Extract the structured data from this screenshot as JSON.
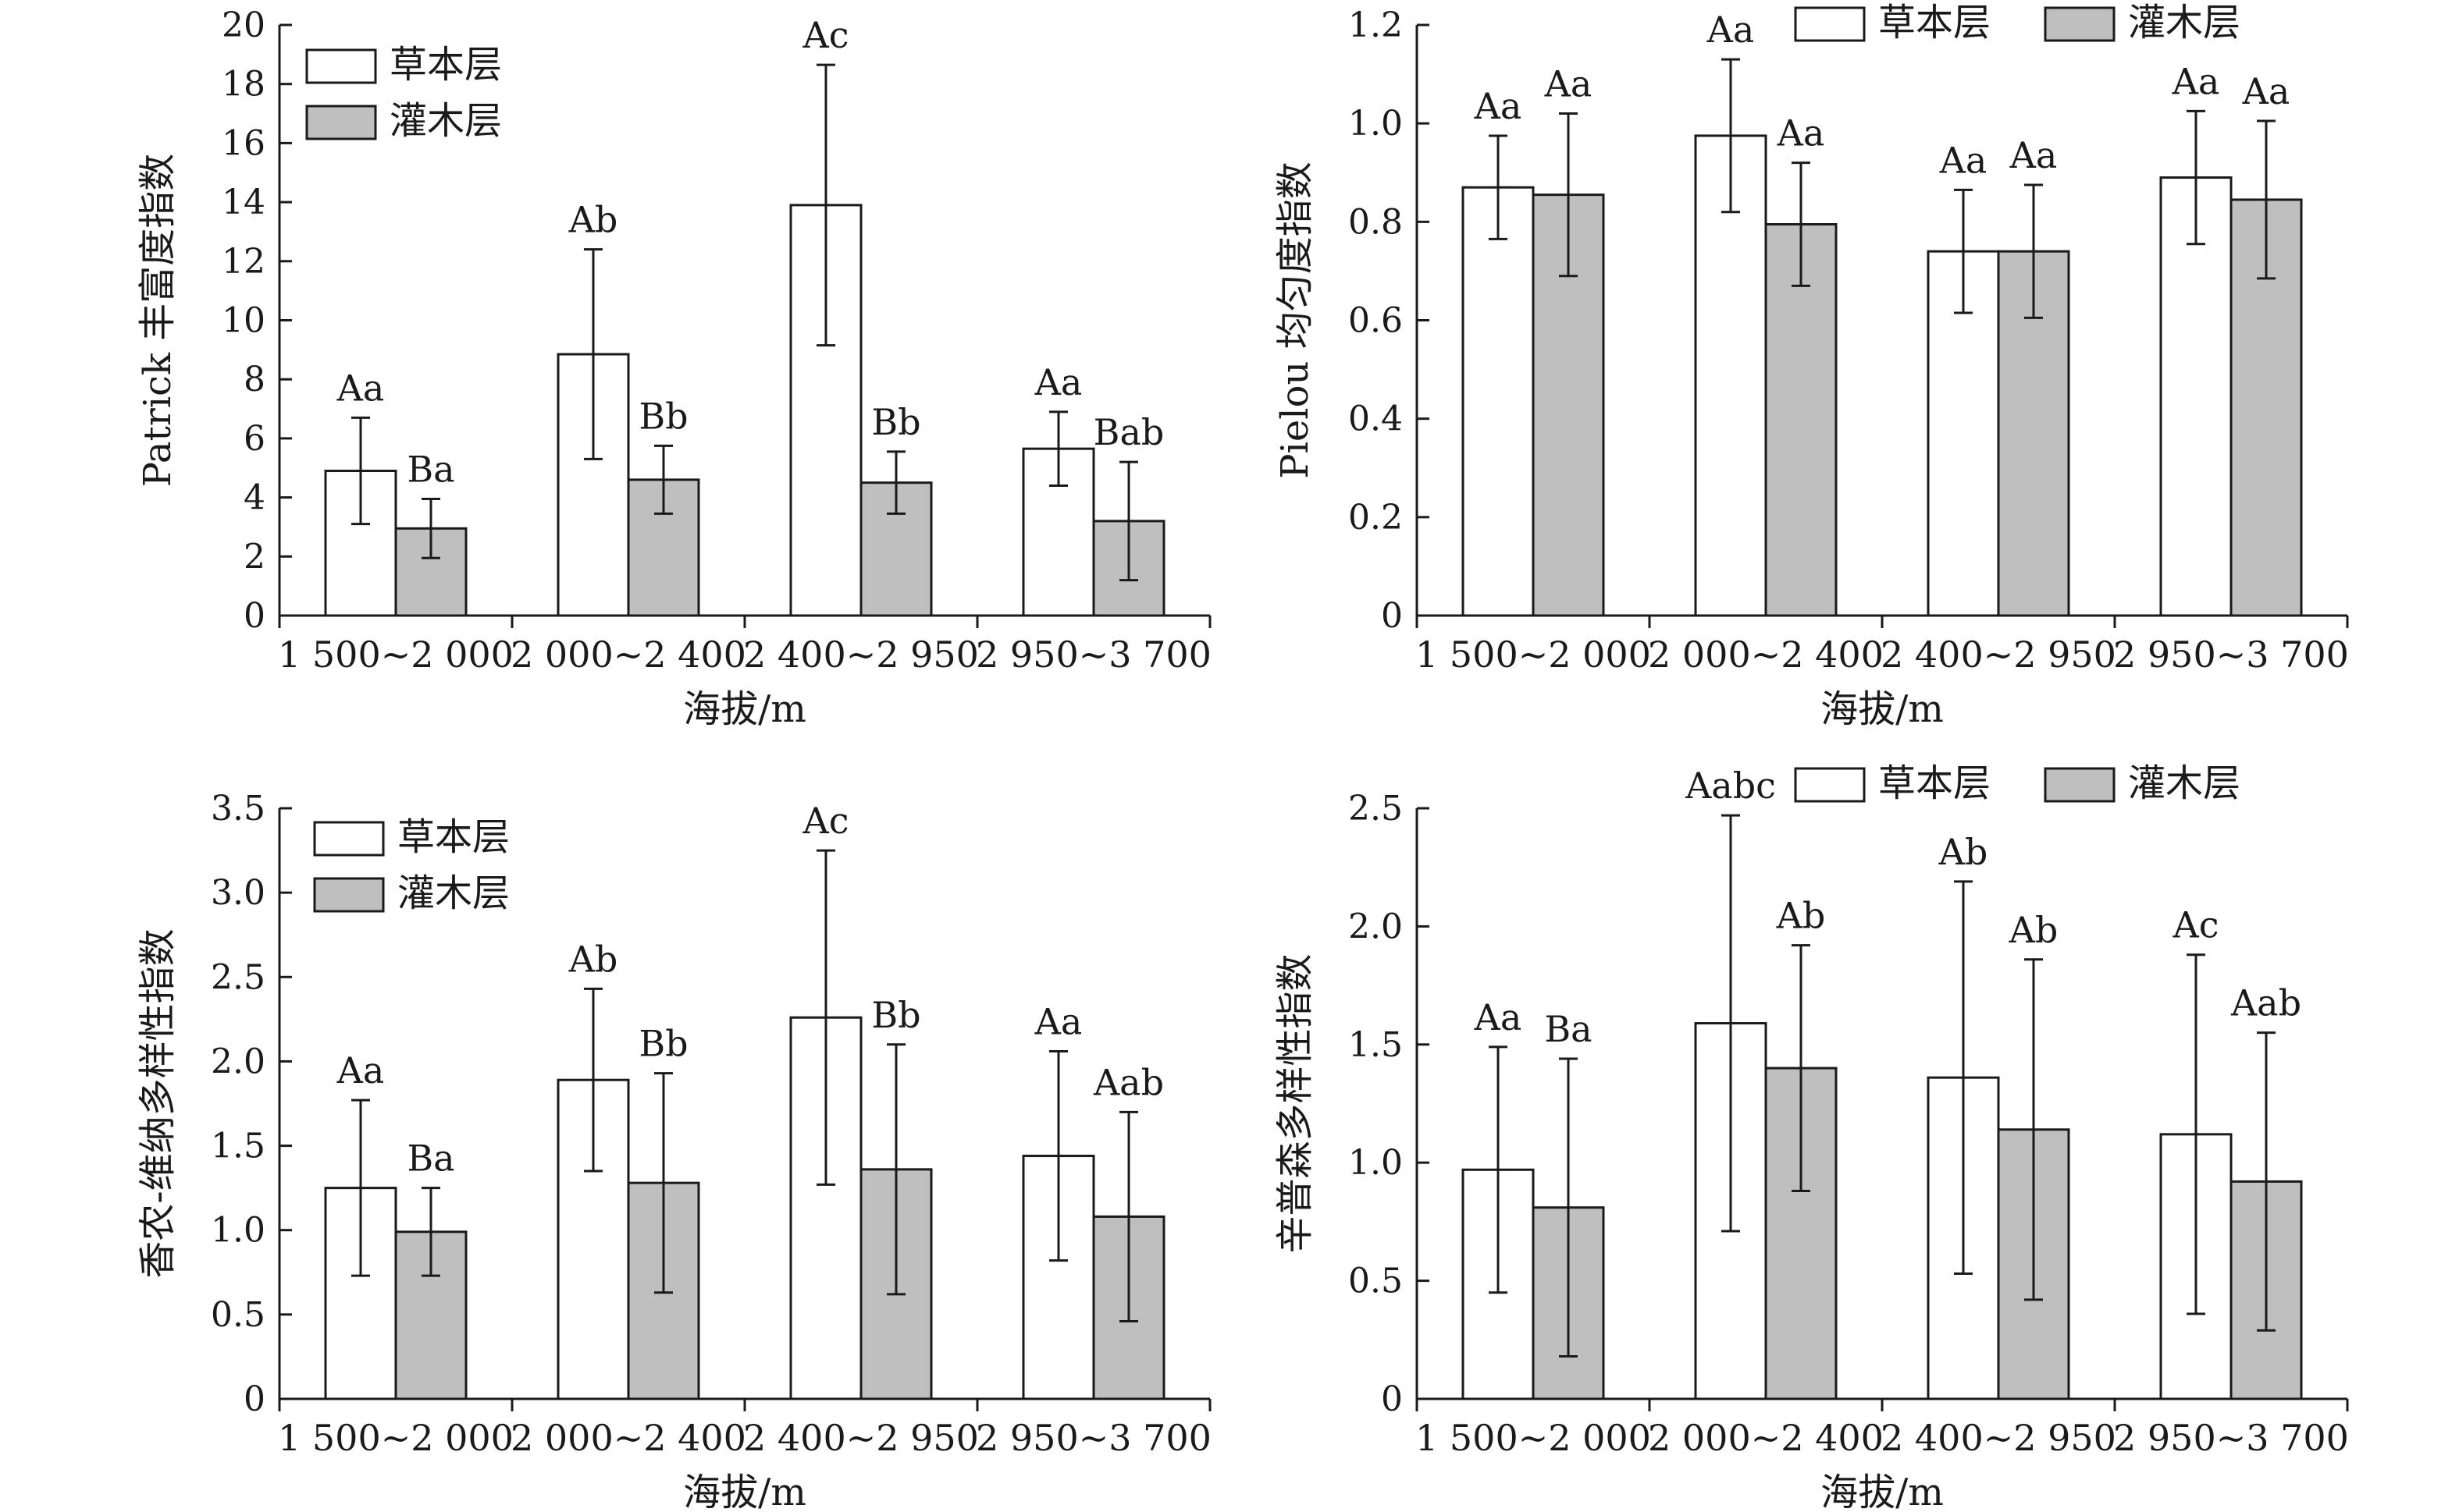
{
  "colors": {
    "herb": "#ffffff",
    "shrub": "#bfbfbf",
    "ink": "#1a1a1a"
  },
  "legend": {
    "herb": "草本层",
    "shrub": "灌木层"
  },
  "chart_data": [
    {
      "id": "patrick",
      "type": "bar",
      "ylabel": "Patrick 丰富度指数",
      "xlabel": "海拔/m",
      "ylim": [
        0,
        20
      ],
      "yticks": [
        0,
        2,
        4,
        6,
        8,
        10,
        12,
        14,
        16,
        18,
        20
      ],
      "categories": [
        "1 500~2 000",
        "2 000~2 400",
        "2 400~2 950",
        "2 950~3 700"
      ],
      "legend_position": "top-left",
      "series": [
        {
          "name": "草本层",
          "values": [
            4.9,
            8.85,
            13.9,
            5.65
          ],
          "error": [
            1.8,
            3.55,
            4.75,
            1.25
          ],
          "labels": [
            "Aa",
            "Ab",
            "Ac",
            "Aa"
          ]
        },
        {
          "name": "灌木层",
          "values": [
            2.95,
            4.6,
            4.5,
            3.2
          ],
          "error": [
            1.0,
            1.15,
            1.05,
            2.0
          ],
          "labels": [
            "Ba",
            "Bb",
            "Bb",
            "Bab"
          ]
        }
      ]
    },
    {
      "id": "pielou",
      "type": "bar",
      "ylabel": "Pielou 均匀度指数",
      "xlabel": "海拔/m",
      "ylim": [
        0,
        1.2
      ],
      "yticks": [
        "0",
        "0.2",
        "0.4",
        "0.6",
        "0.8",
        "1.0",
        "1.2"
      ],
      "categories": [
        "1 500~2 000",
        "2 000~2 400",
        "2 400~2 950",
        "2 950~3 700"
      ],
      "legend_position": "top",
      "series": [
        {
          "name": "草本层",
          "values": [
            0.87,
            0.975,
            0.74,
            0.89
          ],
          "error": [
            0.105,
            0.155,
            0.125,
            0.135
          ],
          "labels": [
            "Aa",
            "Aa",
            "Aa",
            "Aa"
          ]
        },
        {
          "name": "灌木层",
          "values": [
            0.855,
            0.795,
            0.74,
            0.845
          ],
          "error": [
            0.165,
            0.125,
            0.135,
            0.16
          ],
          "labels": [
            "Aa",
            "Aa",
            "Aa",
            "Aa"
          ]
        }
      ]
    },
    {
      "id": "shannon",
      "type": "bar",
      "ylabel": "香农-维纳多样性指数",
      "xlabel": "海拔/m",
      "ylim": [
        0,
        3.5
      ],
      "yticks": [
        "0",
        "0.5",
        "1.0",
        "1.5",
        "2.0",
        "2.5",
        "3.0",
        "3.5"
      ],
      "categories": [
        "1 500~2 000",
        "2 000~2 400",
        "2 400~2 950",
        "2 950~3 700"
      ],
      "legend_position": "top-left",
      "series": [
        {
          "name": "草本层",
          "values": [
            1.25,
            1.89,
            2.26,
            1.44
          ],
          "error": [
            0.52,
            0.54,
            0.99,
            0.62
          ],
          "labels": [
            "Aa",
            "Ab",
            "Ac",
            "Aa"
          ]
        },
        {
          "name": "灌木层",
          "values": [
            0.99,
            1.28,
            1.36,
            1.08
          ],
          "error": [
            0.26,
            0.65,
            0.74,
            0.62
          ],
          "labels": [
            "Ba",
            "Bb",
            "Bb",
            "Aab"
          ]
        }
      ]
    },
    {
      "id": "simpson",
      "type": "bar",
      "ylabel": "辛普森多样性指数",
      "xlabel": "海拔/m",
      "ylim": [
        0,
        2.5
      ],
      "yticks": [
        "0",
        "0.5",
        "1.0",
        "1.5",
        "2.0",
        "2.5"
      ],
      "categories": [
        "1 500~2 000",
        "2 000~2 400",
        "2 400~2 950",
        "2 950~3 700"
      ],
      "legend_position": "top",
      "series": [
        {
          "name": "草本层",
          "values": [
            0.97,
            1.59,
            1.36,
            1.12
          ],
          "error": [
            0.52,
            0.88,
            0.83,
            0.76
          ],
          "labels": [
            "Aa",
            "Aabc",
            "Ab",
            "Ac"
          ]
        },
        {
          "name": "灌木层",
          "values": [
            0.81,
            1.4,
            1.14,
            0.92
          ],
          "error": [
            0.63,
            0.52,
            0.72,
            0.63
          ],
          "labels": [
            "Ba",
            "Ab",
            "Ab",
            "Aab"
          ]
        }
      ]
    }
  ]
}
